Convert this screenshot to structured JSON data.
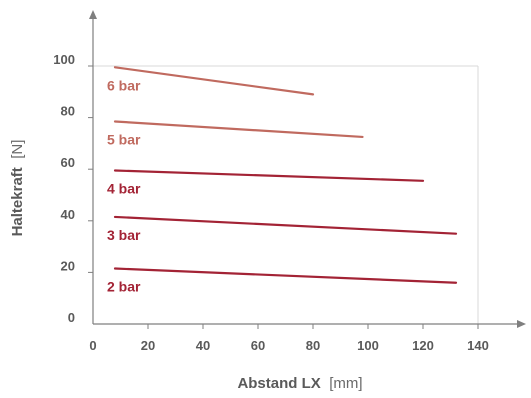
{
  "chart_data": {
    "type": "line",
    "xlabel": "Abstand LX",
    "xunit": "[mm]",
    "ylabel": "Haltekraft",
    "yunit": "[N]",
    "xlim": [
      0,
      140
    ],
    "ylim": [
      0,
      100
    ],
    "xticks": [
      0,
      20,
      40,
      60,
      80,
      100,
      120,
      140
    ],
    "yticks": [
      0,
      20,
      40,
      60,
      80,
      100
    ],
    "grid": "none",
    "series": [
      {
        "name": "2 bar",
        "x": [
          8,
          132
        ],
        "y": [
          21.5,
          16.0
        ],
        "color": "#a32335"
      },
      {
        "name": "3 bar",
        "x": [
          8,
          132
        ],
        "y": [
          41.5,
          35.0
        ],
        "color": "#a32335"
      },
      {
        "name": "4 bar",
        "x": [
          8,
          120
        ],
        "y": [
          59.5,
          55.5
        ],
        "color": "#a32335"
      },
      {
        "name": "5 bar",
        "x": [
          8,
          98
        ],
        "y": [
          78.5,
          72.5
        ],
        "color": "#c06a5f"
      },
      {
        "name": "6 bar",
        "x": [
          8,
          80
        ],
        "y": [
          99.5,
          89.0
        ],
        "color": "#c06a5f"
      }
    ]
  },
  "colors": {
    "axis": "#7f7f7f",
    "frame": "#d9d9d9",
    "tick_text": "#5a5a5a"
  }
}
